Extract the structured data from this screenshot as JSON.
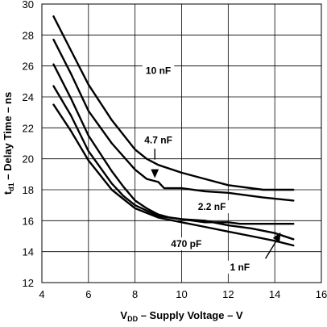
{
  "chart_data": {
    "type": "line",
    "xlabel_parts": {
      "pre": "V",
      "sub": "DD",
      "post": " – Supply Voltage – V"
    },
    "ylabel_parts": {
      "pre": "t",
      "sub": "d1",
      "post": " – Delay Time – ns"
    },
    "xlim": [
      4,
      16
    ],
    "ylim": [
      12,
      30
    ],
    "xticks": [
      4,
      6,
      8,
      10,
      12,
      14,
      16
    ],
    "yticks": [
      12,
      14,
      16,
      18,
      20,
      22,
      24,
      26,
      28,
      30
    ],
    "grid": true,
    "series": [
      {
        "name": "10 nF",
        "points": [
          [
            4.5,
            29.2
          ],
          [
            5.25,
            27.0
          ],
          [
            6.0,
            24.8
          ],
          [
            7.0,
            22.5
          ],
          [
            8.0,
            20.6
          ],
          [
            8.5,
            20.0
          ],
          [
            9.0,
            19.6
          ],
          [
            10.0,
            19.1
          ],
          [
            11.0,
            18.7
          ],
          [
            12.0,
            18.3
          ],
          [
            13.5,
            18.0
          ],
          [
            14.8,
            18.0
          ]
        ]
      },
      {
        "name": "4.7 nF",
        "points": [
          [
            4.5,
            27.7
          ],
          [
            5.25,
            25.5
          ],
          [
            6.0,
            23.1
          ],
          [
            7.0,
            21.0
          ],
          [
            8.0,
            19.3
          ],
          [
            8.5,
            18.7
          ],
          [
            9.0,
            18.5
          ],
          [
            9.25,
            18.1
          ],
          [
            10.0,
            18.1
          ],
          [
            11.0,
            17.9
          ],
          [
            12.0,
            17.8
          ],
          [
            13.5,
            17.5
          ],
          [
            14.8,
            17.3
          ]
        ]
      },
      {
        "name": "2.2 nF",
        "points": [
          [
            4.5,
            26.1
          ],
          [
            5.25,
            23.9
          ],
          [
            6.0,
            21.5
          ],
          [
            7.0,
            19.2
          ],
          [
            7.5,
            18.2
          ],
          [
            8.0,
            17.3
          ],
          [
            8.5,
            16.8
          ],
          [
            9.0,
            16.4
          ],
          [
            9.5,
            16.2
          ],
          [
            10.0,
            16.1
          ],
          [
            11.0,
            15.9
          ],
          [
            12.0,
            15.9
          ],
          [
            12.5,
            15.8
          ],
          [
            13.5,
            15.8
          ],
          [
            14.8,
            15.8
          ]
        ]
      },
      {
        "name": "1 nF",
        "points": [
          [
            4.5,
            24.7
          ],
          [
            5.25,
            22.8
          ],
          [
            6.0,
            20.5
          ],
          [
            7.0,
            18.4
          ],
          [
            7.5,
            17.6
          ],
          [
            8.0,
            17.0
          ],
          [
            9.0,
            16.3
          ],
          [
            10.0,
            16.1
          ],
          [
            11.0,
            16.0
          ],
          [
            12.0,
            15.7
          ],
          [
            13.0,
            15.5
          ],
          [
            14.0,
            15.2
          ],
          [
            14.8,
            14.8
          ]
        ]
      },
      {
        "name": "470 pF",
        "points": [
          [
            4.5,
            23.5
          ],
          [
            5.25,
            21.8
          ],
          [
            6.0,
            19.9
          ],
          [
            7.0,
            18.0
          ],
          [
            7.5,
            17.4
          ],
          [
            8.0,
            16.8
          ],
          [
            9.0,
            16.2
          ],
          [
            10.0,
            15.9
          ],
          [
            11.0,
            15.6
          ],
          [
            12.0,
            15.3
          ],
          [
            13.0,
            15.0
          ],
          [
            14.0,
            14.7
          ],
          [
            14.8,
            14.4
          ]
        ]
      }
    ],
    "annotations": [
      {
        "text": "10 nF",
        "at": [
          9.0,
          25.7
        ]
      },
      {
        "text": "4.7 nF",
        "at": [
          9.0,
          21.2
        ]
      },
      {
        "text": "2.2 nF",
        "at": [
          11.3,
          16.9
        ]
      },
      {
        "text": "470 pF",
        "at": [
          10.2,
          14.5
        ]
      },
      {
        "text": "1 nF",
        "at": [
          12.5,
          13.0
        ]
      }
    ]
  }
}
